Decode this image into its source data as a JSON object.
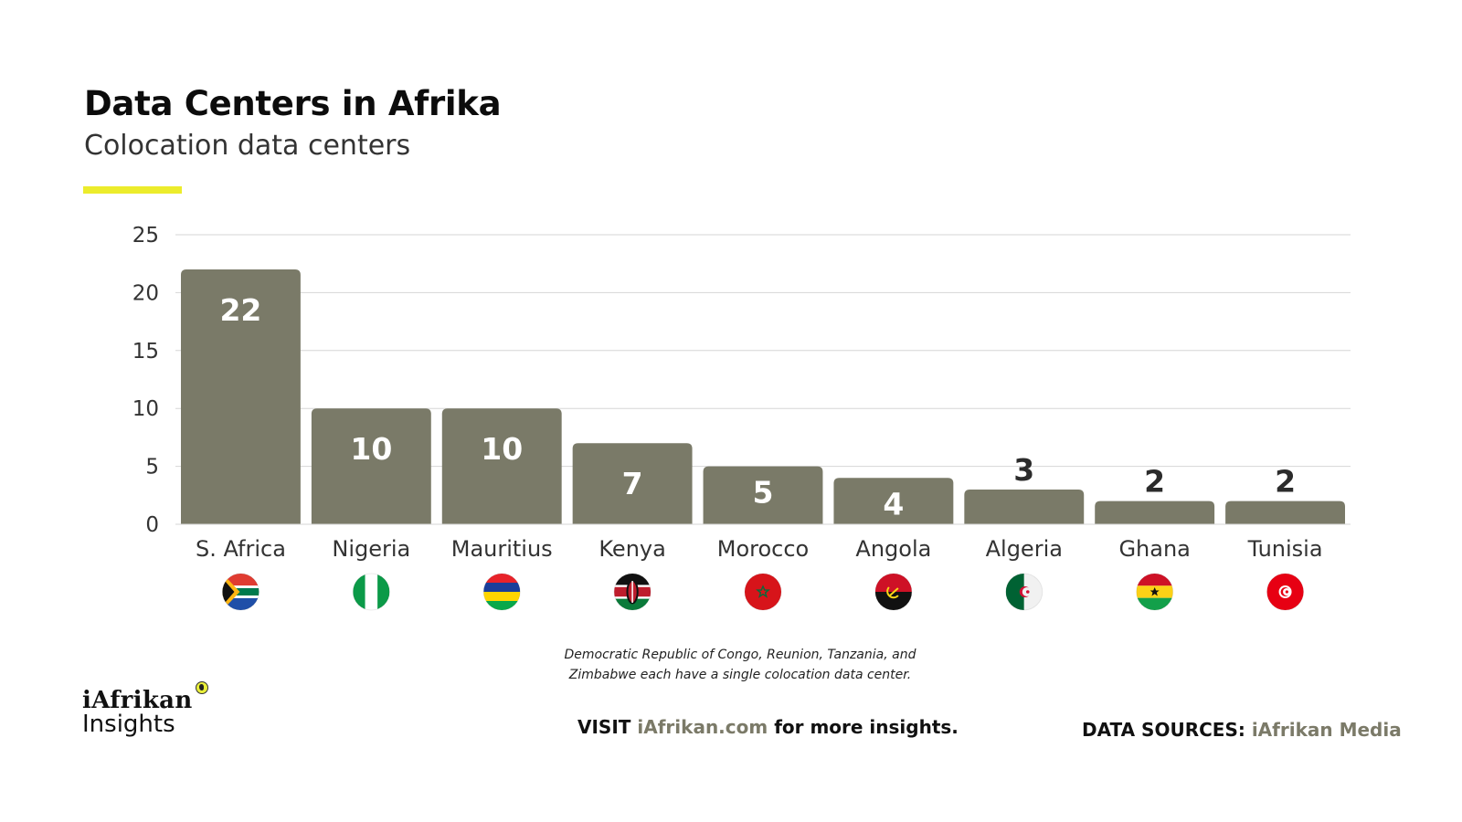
{
  "header": {
    "title": "Data Centers in Afrika",
    "subtitle": "Colocation data centers"
  },
  "colors": {
    "bar": "#7a7a68",
    "bar_label_inside": "#ffffff",
    "bar_label_outside": "#2b2b2b",
    "accent": "#ecec2c",
    "grid": "#d6d6d6",
    "link": "#7b7a68"
  },
  "chart_data": {
    "type": "bar",
    "title": "Data Centers in Afrika",
    "subtitle": "Colocation data centers",
    "categories": [
      "S. Africa",
      "Nigeria",
      "Mauritius",
      "Kenya",
      "Morocco",
      "Angola",
      "Algeria",
      "Ghana",
      "Tunisia"
    ],
    "values": [
      22,
      10,
      10,
      7,
      5,
      4,
      3,
      2,
      2
    ],
    "data_labels": [
      "22",
      "10",
      "10",
      "7",
      "5",
      "4",
      "3",
      "2",
      "2"
    ],
    "xlabel": "",
    "ylabel": "",
    "ylim": [
      0,
      25
    ],
    "yticks": [
      0,
      5,
      10,
      15,
      20,
      25
    ],
    "ytick_labels": [
      "0",
      "5",
      "10",
      "15",
      "20",
      "25"
    ],
    "grid": true,
    "legend": "none",
    "category_icons": [
      "south-africa-flag-icon",
      "nigeria-flag-icon",
      "mauritius-flag-icon",
      "kenya-flag-icon",
      "morocco-flag-icon",
      "angola-flag-icon",
      "algeria-flag-icon",
      "ghana-flag-icon",
      "tunisia-flag-icon"
    ]
  },
  "footnote": {
    "line1": "Democratic Republic of Congo, Reunion, Tanzania, and",
    "line2": "Zimbabwe each have a single colocation data center."
  },
  "logo": {
    "name": "iAfrikan",
    "sub": "Insights",
    "icon": "africa-map-icon"
  },
  "footer": {
    "visit_prefix": "VISIT",
    "visit_link": "iAfrikan.com",
    "visit_suffix": "for more insights.",
    "sources_label": "DATA SOURCES:",
    "sources_value": "iAfrikan Media"
  }
}
